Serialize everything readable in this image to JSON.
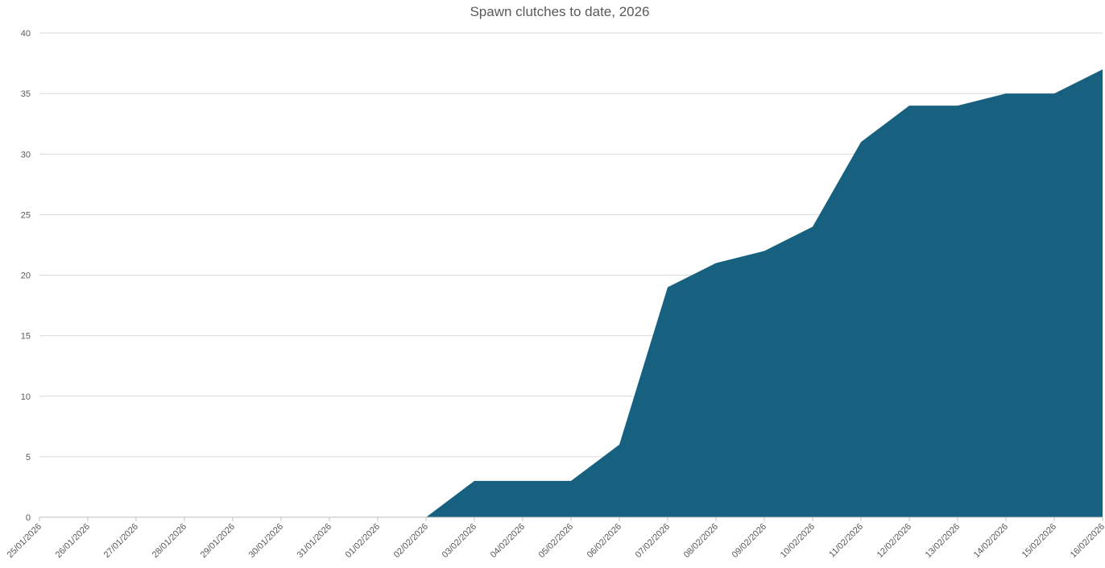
{
  "chart_data": {
    "type": "area",
    "title": "Spawn clutches to date, 2026",
    "xlabel": "",
    "ylabel": "",
    "categories": [
      "25/01/2026",
      "26/01/2026",
      "27/01/2026",
      "28/01/2026",
      "29/01/2026",
      "30/01/2026",
      "31/01/2026",
      "01/02/2026",
      "02/02/2026",
      "03/02/2026",
      "04/02/2026",
      "05/02/2026",
      "06/02/2026",
      "07/02/2026",
      "08/02/2026",
      "09/02/2026",
      "10/02/2026",
      "11/02/2026",
      "12/02/2026",
      "13/02/2026",
      "14/02/2026",
      "15/02/2026",
      "16/02/2026"
    ],
    "values": [
      0,
      0,
      0,
      0,
      0,
      0,
      0,
      0,
      0,
      3,
      3,
      3,
      6,
      19,
      21,
      22,
      24,
      31,
      34,
      34,
      35,
      35,
      37
    ],
    "ylim": [
      0,
      40
    ],
    "yticks": [
      0,
      5,
      10,
      15,
      20,
      25,
      30,
      35,
      40
    ],
    "grid": true,
    "legend": "none",
    "colors": {
      "area": "#17607f",
      "grid": "#d9d9d9",
      "text": "#595959"
    }
  }
}
